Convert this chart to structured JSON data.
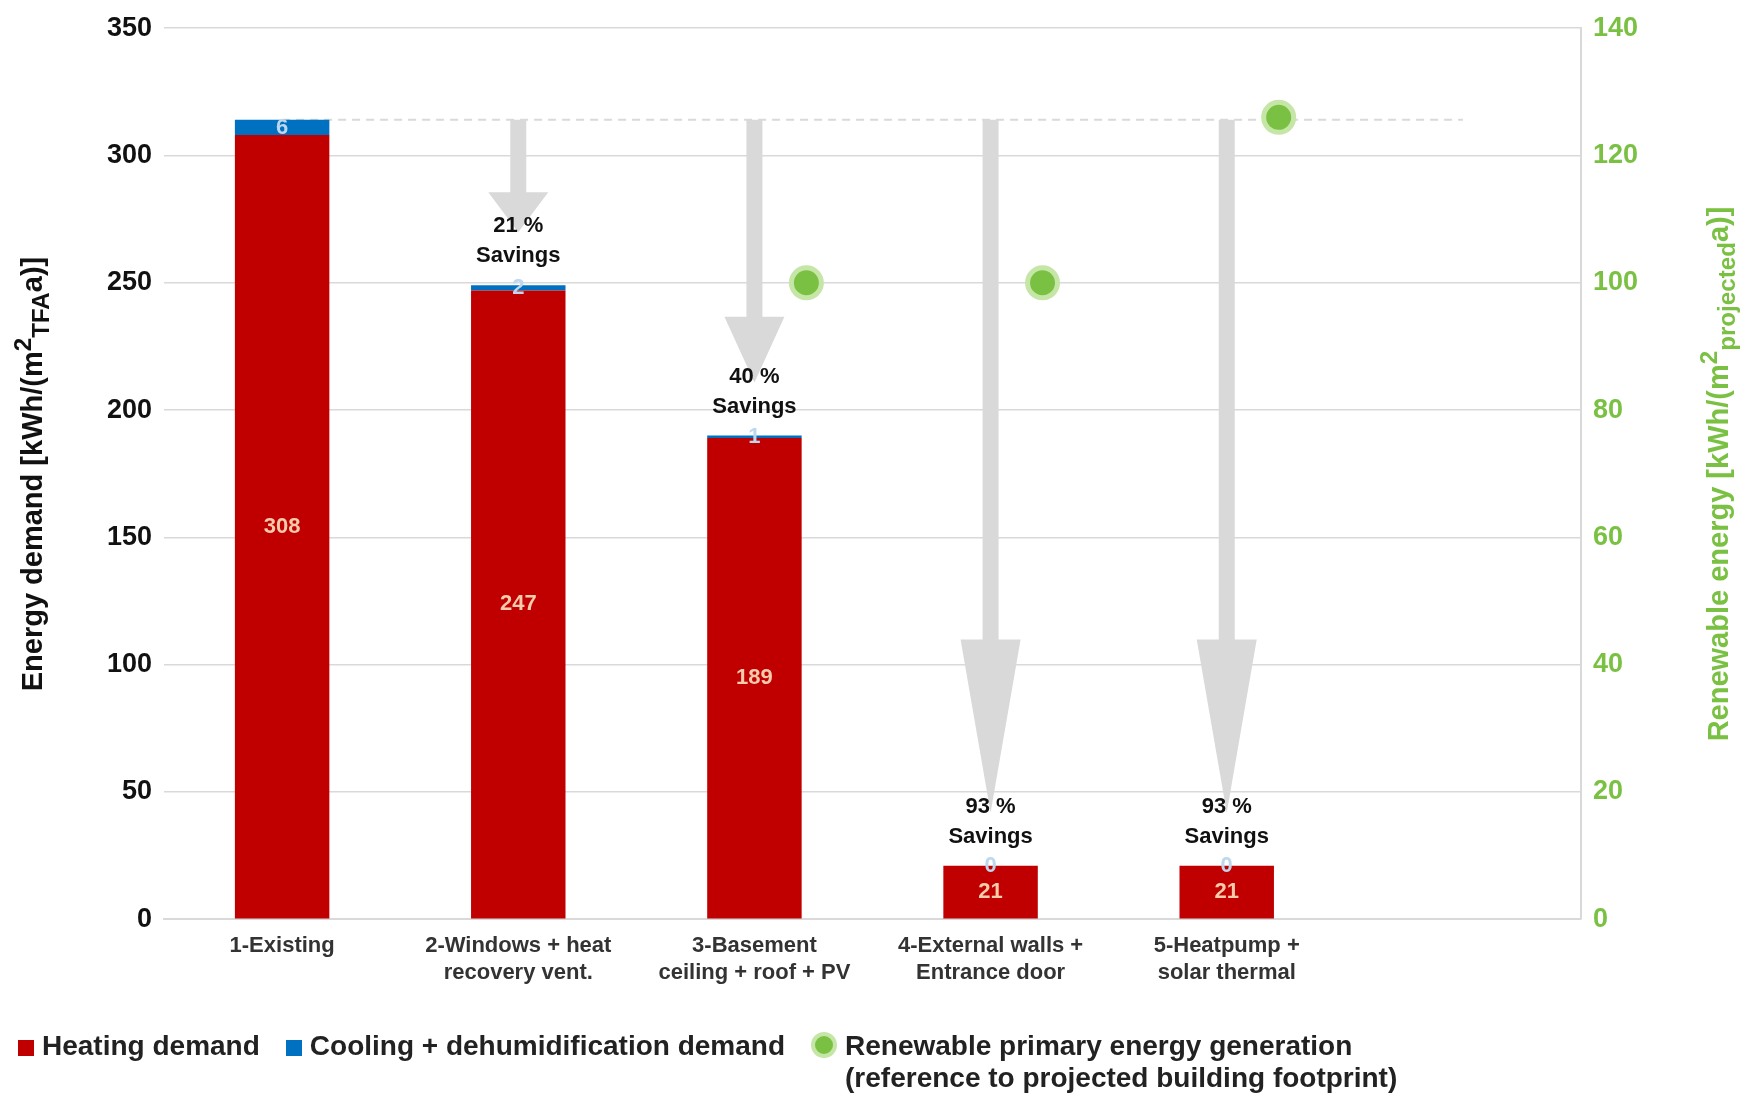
{
  "chart_data": {
    "type": "bar",
    "stacked": true,
    "categories": [
      "1-Existing",
      "2-Windows + heat recovery vent.",
      "3-Basement ceiling + roof + PV",
      "4-External walls + Entrance door",
      "5-Heatpump + solar thermal",
      null
    ],
    "series": [
      {
        "name": "Heating demand",
        "color": "#c00000",
        "values": [
          308,
          247,
          189,
          21,
          21,
          null
        ],
        "value_labels": [
          "308",
          "247",
          "189",
          "21",
          "21",
          null
        ]
      },
      {
        "name": "Cooling + dehumidification demand",
        "color": "#0070c0",
        "values": [
          6,
          2,
          1,
          0,
          0,
          null
        ],
        "value_labels": [
          "6",
          "2",
          "1",
          "0",
          "0",
          null
        ]
      },
      {
        "name": "Renewable primary energy generation (reference to projected building footprint)",
        "type": "scatter",
        "axis": "y2",
        "color": "#7ac143",
        "x": [
          "3-Basement ceiling + roof + PV",
          "4-External walls + Entrance door",
          "5-Heatpump + solar thermal"
        ],
        "values": [
          100,
          100,
          126
        ]
      }
    ],
    "ylabel": "Energy demand [kWh/(m$^{2}$$_{TFA}$a)]",
    "y2label": "Renewable energy [kWh/(m$^{2}$$_{projected}$a)]",
    "ylim": [
      0,
      350
    ],
    "yticks": [
      0,
      50,
      100,
      150,
      200,
      250,
      300,
      350
    ],
    "y2lim": [
      0,
      140
    ],
    "y2ticks": [
      0,
      20,
      40,
      60,
      80,
      100,
      120,
      140
    ],
    "grid": "y",
    "legend": "bottom",
    "marker": "circle",
    "ref_lines": [
      {
        "axis": "y",
        "value": 314,
        "line_style": "dashed",
        "color": "#d9d9d9"
      }
    ],
    "annotations": [
      {
        "text": "21 %\nSavings",
        "x": "2-Windows + heat recovery vent.",
        "y": 249
      },
      {
        "text": "40 %\nSavings",
        "x": "3-Basement ceiling + roof + PV",
        "y": 190
      },
      {
        "text": "93 %\nSavings",
        "x": "4-External walls + Entrance door",
        "y": 21
      },
      {
        "text": "93 %\nSavings",
        "x": "5-Heatpump + solar thermal",
        "y": 21
      }
    ]
  }
}
